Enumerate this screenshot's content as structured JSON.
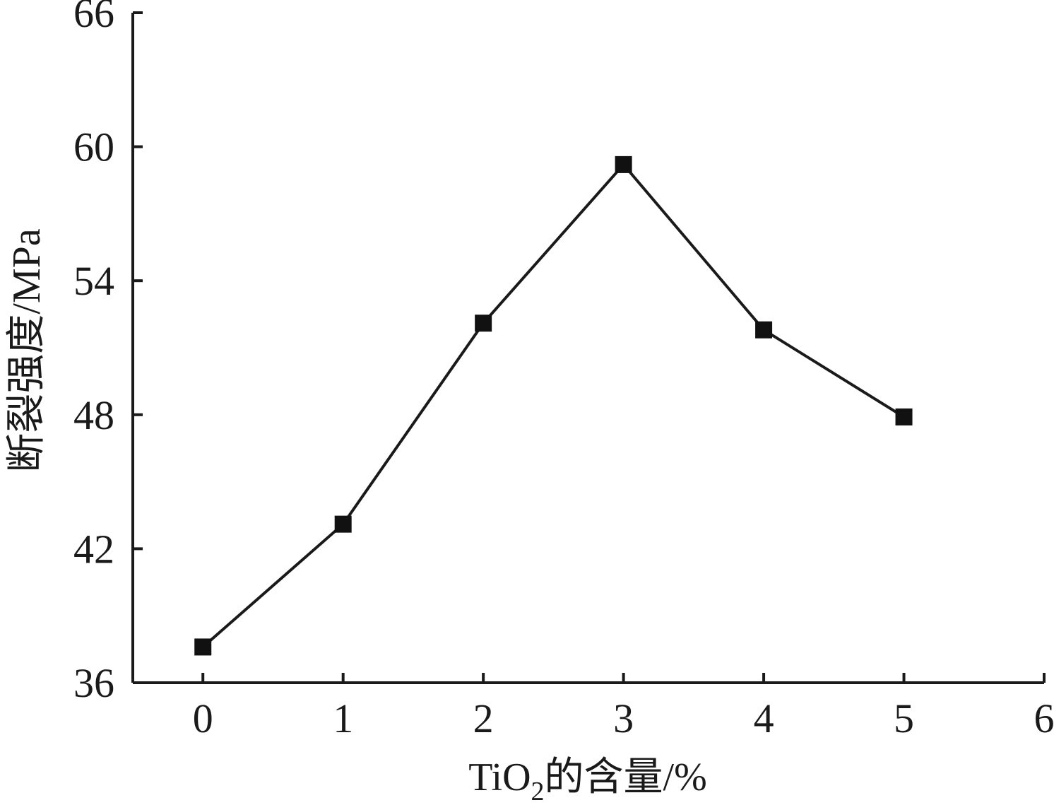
{
  "chart_data": {
    "type": "line",
    "x": [
      0,
      1,
      2,
      3,
      4,
      5
    ],
    "series": [
      {
        "values": [
          37.6,
          43.1,
          52.1,
          59.2,
          51.8,
          47.9
        ]
      }
    ],
    "xlabel": {
      "prefix": "TiO",
      "subscript": "2",
      "suffix": "的含量/%"
    },
    "ylabel": "断裂强度/MPa",
    "xlim": [
      -0.5,
      6
    ],
    "ylim": [
      36,
      66
    ],
    "xticks": [
      0,
      1,
      2,
      3,
      4,
      5,
      6
    ],
    "yticks": [
      36,
      42,
      48,
      54,
      60,
      66
    ],
    "marker": "square",
    "line_color": "#1a1a1a",
    "marker_color": "#111111",
    "grid": false,
    "legend": "none"
  }
}
